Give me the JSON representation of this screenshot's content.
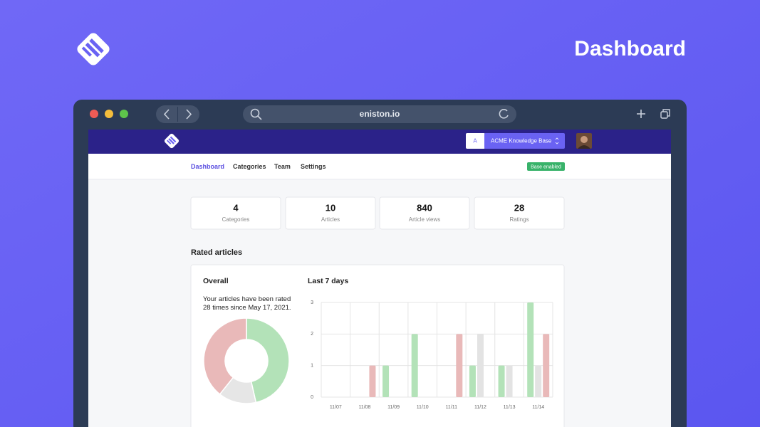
{
  "header": {
    "title": "Dashboard"
  },
  "browser": {
    "url": "eniston.io"
  },
  "app": {
    "workspace_initial": "A",
    "workspace_name": "ACME Knowledge Base",
    "nav": [
      "Dashboard",
      "Categories",
      "Team",
      "Settings"
    ],
    "badge": "Base enabled"
  },
  "stats": [
    {
      "value": 4,
      "label": "Categories"
    },
    {
      "value": 10,
      "label": "Articles"
    },
    {
      "value": 840,
      "label": "Article views"
    },
    {
      "value": 28,
      "label": "Ratings"
    }
  ],
  "section_title": "Rated articles",
  "chart_data": [
    {
      "type": "pie",
      "title": "Overall",
      "subtitle": "Your articles have been rated 28 times since May 17, 2021.",
      "donut": true,
      "values": [
        13,
        4,
        11
      ],
      "colors": [
        "#b3e2b8",
        "#e6e6e6",
        "#e9b9b9"
      ]
    },
    {
      "type": "bar",
      "title": "Last 7 days",
      "categories": [
        "11/07",
        "11/08",
        "11/09",
        "11/10",
        "11/11",
        "11/12",
        "11/13",
        "11/14"
      ],
      "series": [
        {
          "color": "#b3e2b8",
          "values": [
            0,
            0,
            1,
            2,
            0,
            1,
            1,
            3
          ]
        },
        {
          "color": "#e3e3e3",
          "values": [
            0,
            0,
            0,
            0,
            0,
            2,
            1,
            1
          ]
        },
        {
          "color": "#e9b9b9",
          "values": [
            0,
            1,
            0,
            0,
            2,
            0,
            0,
            2
          ]
        }
      ],
      "ylim": [
        0,
        3
      ],
      "yticks": [
        0,
        1,
        2,
        3
      ],
      "grid": true
    }
  ]
}
